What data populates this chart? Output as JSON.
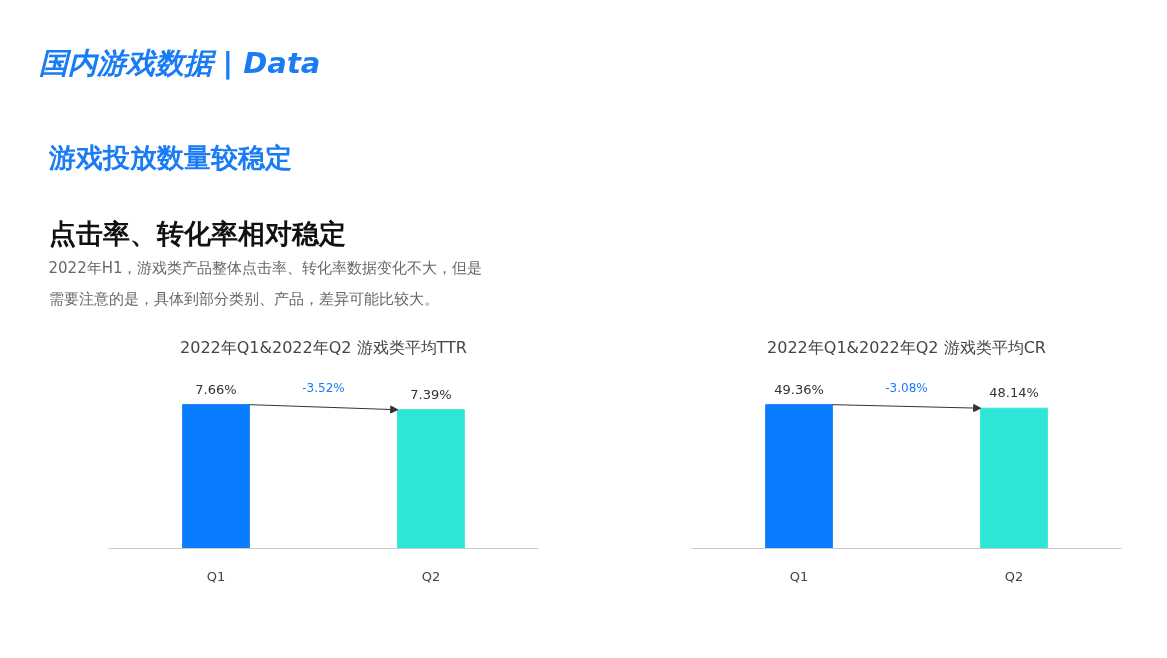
{
  "chart_data": [
    {
      "type": "other",
      "title": "国内游戏数据  | Data",
      "subtitle": "游戏投放数量较稳定",
      "annotations": [
        "点击率、转化率相对稳定",
        "2022年H1，游戏类产品整体点击率、转化率数据变化不大，但是",
        "需要注意的是，具体到部分类别、产品，差异可能比较大。"
      ]
    },
    {
      "type": "bar",
      "title": "2022年Q1&2022年Q2 游戏类平均TTR",
      "categories": [
        "Q1",
        "Q2"
      ],
      "values": [
        7.66,
        7.39
      ],
      "colors": [
        "#0a7cff",
        "#2de6d6"
      ],
      "value_labels": [
        "7.66%",
        "7.39%"
      ],
      "annotations": [
        "-3.52%"
      ]
    },
    {
      "type": "bar",
      "title": "2022年Q1&2022年Q2 游戏类平均CR",
      "categories": [
        "Q1",
        "Q2"
      ],
      "values": [
        49.36,
        48.14
      ],
      "colors": [
        "#0a7cff",
        "#2de6d6"
      ],
      "value_labels": [
        "49.36%",
        "48.14%"
      ],
      "annotations": [
        "-3.08%"
      ]
    }
  ]
}
